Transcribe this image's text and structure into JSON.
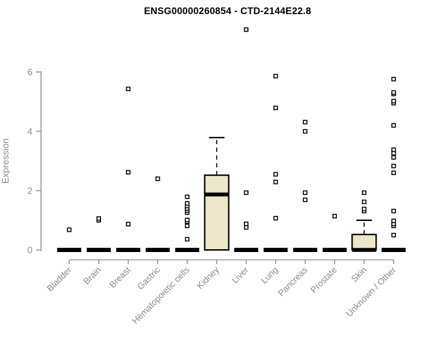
{
  "chart_data": {
    "type": "boxplot",
    "title": "ENSG00000260854 - CTD-2144E22.8",
    "ylabel": "Expression",
    "xlabel": "",
    "ylim": [
      0,
      6
    ],
    "yticks": [
      0,
      2,
      4,
      6
    ],
    "grid": false,
    "legend": "none",
    "outlier_marker": "open-square",
    "colors": {
      "box_fill": "#ece7c9",
      "box_stroke": "#000000",
      "axis": "#8a8a8a",
      "tick_label": "#8a8a8a",
      "title": "#000000",
      "background": "#ffffff"
    },
    "categories": [
      "Bladder",
      "Brain",
      "Breast",
      "Gastric",
      "Hematopoietic cells",
      "Kidney",
      "Liver",
      "Lung",
      "Pancreas",
      "Prostate",
      "Skin",
      "Unknown / Other"
    ],
    "boxes": [
      {
        "category": "Bladder",
        "q1": 0,
        "median": 0,
        "q3": 0,
        "whisker_low": 0,
        "whisker_high": 0,
        "outliers": [
          0.68
        ]
      },
      {
        "category": "Brain",
        "q1": 0,
        "median": 0,
        "q3": 0,
        "whisker_low": 0,
        "whisker_high": 0,
        "outliers": [
          1.0,
          1.06
        ]
      },
      {
        "category": "Breast",
        "q1": 0,
        "median": 0,
        "q3": 0,
        "whisker_low": 0,
        "whisker_high": 0,
        "outliers": [
          0.87,
          2.62,
          5.43
        ]
      },
      {
        "category": "Gastric",
        "q1": 0,
        "median": 0,
        "q3": 0,
        "whisker_low": 0,
        "whisker_high": 0,
        "outliers": [
          2.4
        ]
      },
      {
        "category": "Hematopoietic cells",
        "q1": 0,
        "median": 0,
        "q3": 0,
        "whisker_low": 0,
        "whisker_high": 0,
        "outliers": [
          0.36,
          0.81,
          0.95,
          1.01,
          1.26,
          1.33,
          1.4,
          1.48,
          1.57,
          1.79
        ]
      },
      {
        "category": "Kidney",
        "q1": 0,
        "median": 1.87,
        "q3": 2.52,
        "whisker_low": 0,
        "whisker_high": 3.79,
        "outliers": []
      },
      {
        "category": "Liver",
        "q1": 0,
        "median": 0,
        "q3": 0,
        "whisker_low": 0,
        "whisker_high": 0,
        "outliers": [
          0.76,
          0.88,
          1.93,
          7.43
        ]
      },
      {
        "category": "Lung",
        "q1": 0,
        "median": 0,
        "q3": 0,
        "whisker_low": 0,
        "whisker_high": 0,
        "outliers": [
          1.07,
          2.29,
          2.55,
          4.79,
          5.86
        ]
      },
      {
        "category": "Pancreas",
        "q1": 0,
        "median": 0,
        "q3": 0,
        "whisker_low": 0,
        "whisker_high": 0,
        "outliers": [
          1.69,
          1.93,
          4.0,
          4.31
        ]
      },
      {
        "category": "Prostate",
        "q1": 0,
        "median": 0,
        "q3": 0,
        "whisker_low": 0,
        "whisker_high": 0,
        "outliers": [
          1.14
        ]
      },
      {
        "category": "Skin",
        "q1": 0,
        "median": 0,
        "q3": 0.52,
        "whisker_low": 0,
        "whisker_high": 1.0,
        "outliers": [
          1.31,
          1.38,
          1.62,
          1.93
        ]
      },
      {
        "category": "Unknown / Other",
        "q1": 0,
        "median": 0,
        "q3": 0,
        "whisker_low": 0,
        "whisker_high": 0,
        "outliers": [
          0.5,
          0.81,
          0.88,
          0.98,
          1.31,
          2.6,
          2.83,
          3.12,
          3.26,
          3.38,
          4.2,
          4.95,
          5.02,
          5.26,
          5.31,
          5.76
        ]
      }
    ]
  }
}
